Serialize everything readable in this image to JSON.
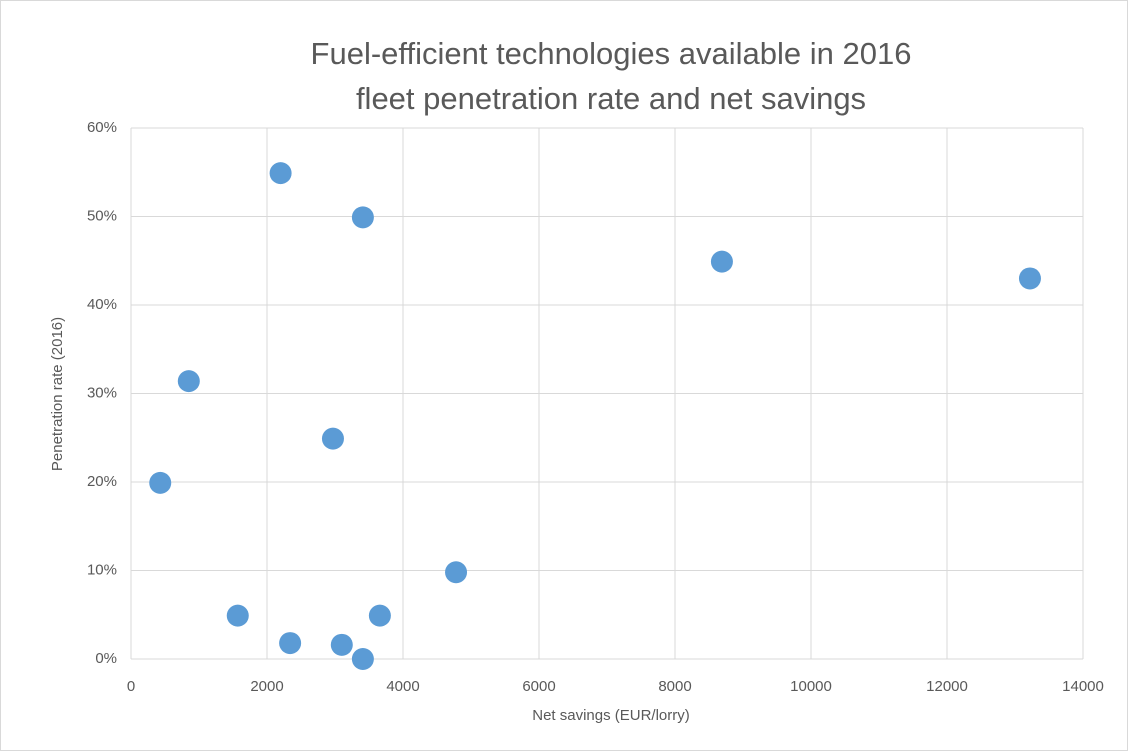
{
  "chart_data": {
    "type": "scatter",
    "title": [
      "Fuel-efficient technologies available in 2016",
      "fleet penetration rate and net savings"
    ],
    "x_label": "Net savings (EUR/lorry)",
    "y_label": "Penetration rate (2016)",
    "series": [
      {
        "color": "#5b9bd5",
        "x": [
          2200,
          3410,
          8690,
          13220,
          850,
          2970,
          430,
          4780,
          1570,
          3660,
          2340,
          3100,
          3410
        ],
        "values": [
          54.9,
          49.9,
          44.9,
          43.0,
          31.4,
          24.9,
          19.9,
          9.8,
          4.9,
          4.9,
          1.8,
          1.6,
          0
        ]
      }
    ],
    "xlim": [
      0,
      14000
    ],
    "xticks": [
      0,
      2000,
      4000,
      6000,
      8000,
      10000,
      12000,
      14000
    ],
    "ylim": [
      0,
      60
    ],
    "yticks": [
      {
        "value": 0,
        "label": "0%"
      },
      {
        "value": 10,
        "label": "10%"
      },
      {
        "value": 20,
        "label": "20%"
      },
      {
        "value": 30,
        "label": "30%"
      },
      {
        "value": 40,
        "label": "40%"
      },
      {
        "value": 50,
        "label": "50%"
      },
      {
        "value": 60,
        "label": "60%"
      }
    ],
    "grid": true
  }
}
